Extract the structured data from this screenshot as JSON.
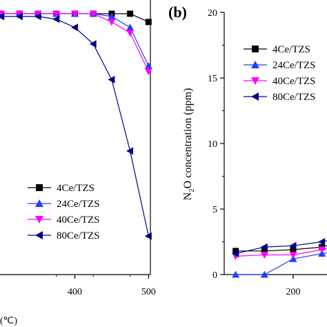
{
  "chart_data": [
    {
      "type": "line",
      "panel": "a",
      "xlabel": "(℃)",
      "ylabel": "",
      "xlim": [
        275,
        525
      ],
      "ylim": [
        0,
        100
      ],
      "x_ticks": [
        "400",
        "500"
      ],
      "legend": "bottom-right",
      "x": [
        275,
        300,
        325,
        350,
        375,
        400,
        425,
        450,
        475,
        500
      ],
      "series": [
        {
          "name": "4Ce/TZS",
          "marker": "square",
          "color": "#000000",
          "values": [
            95,
            95,
            95,
            95,
            95,
            95,
            95,
            95,
            95,
            92
          ]
        },
        {
          "name": "24Ce/TZS",
          "marker": "triangle-up",
          "color": "#1f3fff",
          "values": [
            95,
            95,
            95,
            95,
            95,
            95,
            95,
            94,
            90,
            76
          ]
        },
        {
          "name": "40Ce/TZS",
          "marker": "triangle-down",
          "color": "#ff00ff",
          "values": [
            95,
            95,
            95,
            95,
            95,
            95,
            95,
            92,
            88,
            74
          ]
        },
        {
          "name": "80Ce/TZS",
          "marker": "triangle-left",
          "color": "#00008b",
          "values": [
            95,
            94,
            94,
            94,
            93,
            90,
            84,
            71,
            45,
            14
          ]
        }
      ]
    },
    {
      "type": "line",
      "panel": "b",
      "panel_label": "(b)",
      "ylabel": "N2O concentration (ppm)",
      "ylabel_parts": {
        "pre": "N",
        "sub": "2",
        "post": "O concentration (ppm)"
      },
      "xlim": [
        140,
        260
      ],
      "ylim": [
        0,
        20
      ],
      "y_ticks": [
        "0",
        "5",
        "10",
        "15",
        "20"
      ],
      "x_ticks": [
        "200"
      ],
      "legend": "top-left",
      "x": [
        150,
        175,
        200,
        225,
        250
      ],
      "series": [
        {
          "name": "4Ce/TZS",
          "marker": "square",
          "color": "#000000",
          "values": [
            1.8,
            1.8,
            1.9,
            2.1,
            2.8
          ]
        },
        {
          "name": "24Ce/TZS",
          "marker": "triangle-up",
          "color": "#1f3fff",
          "values": [
            0,
            0,
            1.2,
            1.6,
            1.8
          ]
        },
        {
          "name": "40Ce/TZS",
          "marker": "triangle-down",
          "color": "#ff00ff",
          "values": [
            1.4,
            1.5,
            1.5,
            1.9,
            2.4
          ]
        },
        {
          "name": "80Ce/TZS",
          "marker": "triangle-left",
          "color": "#00008b",
          "values": [
            1.6,
            2.1,
            2.2,
            2.5,
            3.0
          ]
        }
      ]
    }
  ]
}
